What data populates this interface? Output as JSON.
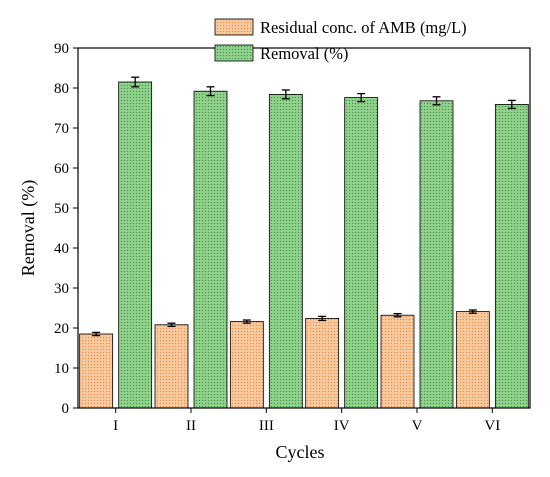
{
  "chart_data": {
    "type": "bar",
    "title": "",
    "xlabel": "Cycles",
    "ylabel": "Removal (%)",
    "ylim": [
      0,
      90
    ],
    "yticks": [
      0,
      10,
      20,
      30,
      40,
      50,
      60,
      70,
      80,
      90
    ],
    "categories": [
      "I",
      "II",
      "III",
      "IV",
      "V",
      "VI"
    ],
    "grid": false,
    "legend_position": "top-right",
    "series": [
      {
        "name": "Residual conc. of AMB (mg/L)",
        "values": [
          18.5,
          20.8,
          21.6,
          22.4,
          23.2,
          24.1
        ],
        "errors": [
          0.4,
          0.4,
          0.4,
          0.5,
          0.4,
          0.4
        ],
        "color": "#f7c89b",
        "dot_color": "#e07b39"
      },
      {
        "name": "Removal (%)",
        "values": [
          81.5,
          79.2,
          78.4,
          77.6,
          76.8,
          75.9
        ],
        "errors": [
          1.2,
          1.1,
          1.1,
          1.0,
          1.0,
          1.0
        ],
        "color": "#8fd18a",
        "dot_color": "#2e7d32"
      }
    ]
  }
}
